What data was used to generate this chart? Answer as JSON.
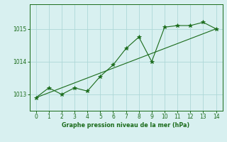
{
  "x": [
    0,
    1,
    2,
    3,
    4,
    5,
    6,
    7,
    8,
    9,
    10,
    11,
    12,
    13,
    14
  ],
  "y_main": [
    1012.9,
    1013.2,
    1013.0,
    1013.2,
    1013.1,
    1013.55,
    1013.9,
    1014.4,
    1014.75,
    1014.0,
    1015.05,
    1015.1,
    1015.1,
    1015.2,
    1015.0
  ],
  "y_trend": [
    1012.9,
    1013.05,
    1013.2,
    1013.35,
    1013.5,
    1013.65,
    1013.8,
    1013.95,
    1014.1,
    1014.25,
    1014.4,
    1014.55,
    1014.7,
    1014.85,
    1015.0
  ],
  "xlabel": "Graphe pression niveau de la mer (hPa)",
  "ylim": [
    1012.5,
    1015.75
  ],
  "xlim": [
    -0.5,
    14.5
  ],
  "yticks": [
    1013,
    1014,
    1015
  ],
  "xticks": [
    0,
    1,
    2,
    3,
    4,
    5,
    6,
    7,
    8,
    9,
    10,
    11,
    12,
    13,
    14
  ],
  "line_color": "#1a6b1a",
  "trend_color": "#1a6b1a",
  "bg_color": "#d8f0f0",
  "grid_color": "#aed8d8",
  "marker": "*",
  "marker_size": 4,
  "line_width": 0.8
}
